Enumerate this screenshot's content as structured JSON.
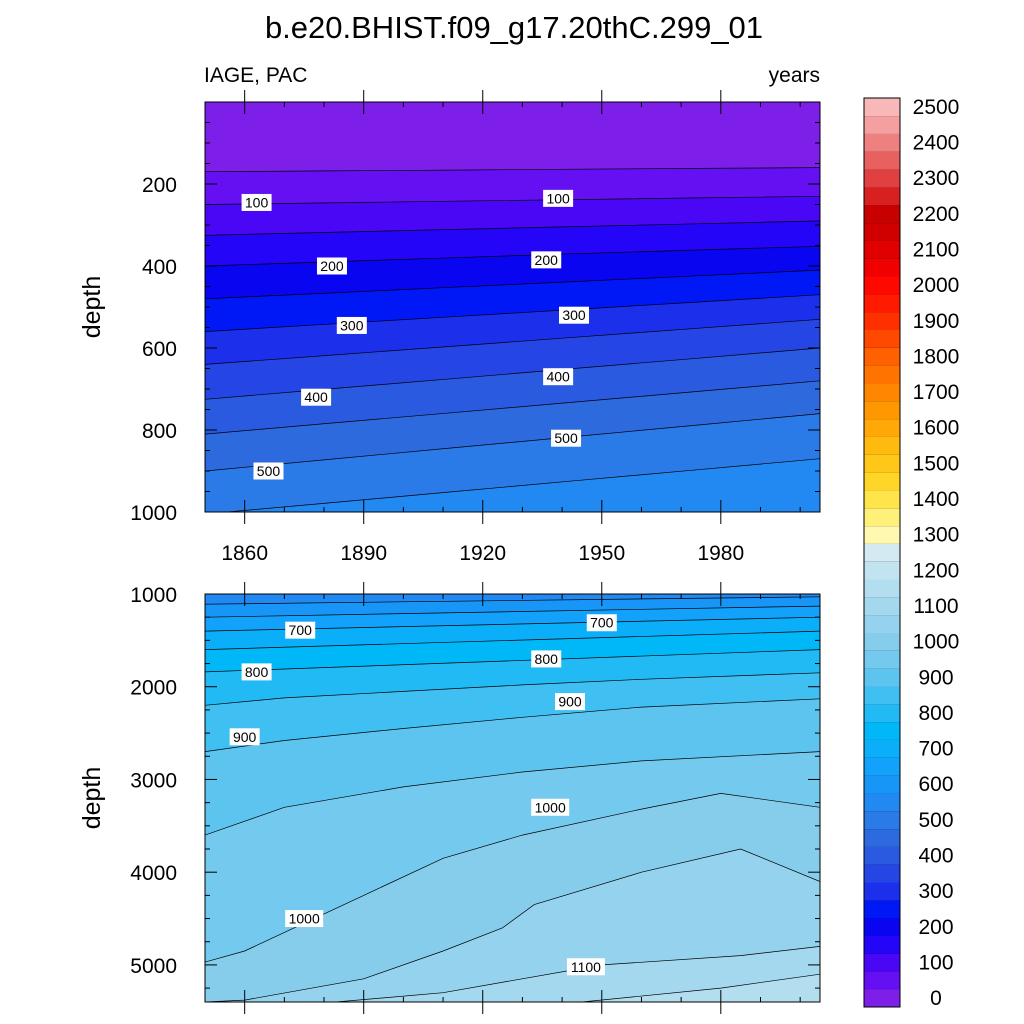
{
  "chart_data": {
    "title": "b.e20.BHIST.f09_g17.20thC.299_01",
    "panels": [
      {
        "type": "contour",
        "left_string": "IAGE, PAC",
        "right_string": "years",
        "ylabel": "depth",
        "y_range": [
          0,
          1000
        ],
        "y_reversed": true,
        "y_ticks": [
          200,
          400,
          600,
          800,
          1000
        ],
        "x_range": [
          1850,
          2005
        ],
        "x_ticks": [
          1860,
          1890,
          1920,
          1950,
          1980
        ],
        "contour_levels": [
          0,
          50,
          100,
          150,
          200,
          250,
          300,
          350,
          400,
          450,
          500,
          550
        ],
        "isolines": [
          {
            "level": 50,
            "depths": [
              170,
              168,
              166,
              164,
              162,
              160
            ]
          },
          {
            "level": 100,
            "depths": [
              250,
              246,
              242,
              238,
              234,
              230
            ]
          },
          {
            "level": 150,
            "depths": [
              325,
              318,
              311,
              304,
              297,
              290
            ]
          },
          {
            "level": 200,
            "depths": [
              400,
              390,
              380,
              370,
              361,
              352
            ]
          },
          {
            "level": 250,
            "depths": [
              480,
              466,
              452,
              438,
              424,
              410
            ]
          },
          {
            "level": 300,
            "depths": [
              560,
              542,
              524,
              506,
              488,
              470
            ]
          },
          {
            "level": 350,
            "depths": [
              640,
              618,
              596,
              574,
              552,
              530
            ]
          },
          {
            "level": 400,
            "depths": [
              725,
              700,
              675,
              650,
              625,
              600
            ]
          },
          {
            "level": 450,
            "depths": [
              810,
              784,
              758,
              732,
              706,
              680
            ]
          },
          {
            "level": 500,
            "depths": [
              900,
              872,
              844,
              816,
              788,
              760
            ]
          },
          {
            "level": 550,
            "depths": [
              1005,
              978,
              951,
              924,
              897,
              870
            ]
          }
        ],
        "contour_labels": [
          {
            "text": "100",
            "year": 1863,
            "depth": 245
          },
          {
            "text": "100",
            "year": 1939,
            "depth": 235
          },
          {
            "text": "200",
            "year": 1882,
            "depth": 400
          },
          {
            "text": "200",
            "year": 1936,
            "depth": 385
          },
          {
            "text": "300",
            "year": 1887,
            "depth": 545
          },
          {
            "text": "300",
            "year": 1943,
            "depth": 520
          },
          {
            "text": "400",
            "year": 1878,
            "depth": 720
          },
          {
            "text": "400",
            "year": 1939,
            "depth": 670
          },
          {
            "text": "500",
            "year": 1866,
            "depth": 900
          },
          {
            "text": "500",
            "year": 1941,
            "depth": 820
          }
        ]
      },
      {
        "type": "contour",
        "ylabel": "depth",
        "y_range": [
          1000,
          5400
        ],
        "y_reversed": true,
        "y_ticks": [
          1000,
          2000,
          3000,
          4000,
          5000
        ],
        "x_range": [
          1850,
          2005
        ],
        "x_ticks": [
          1860,
          1890,
          1920,
          1950,
          1980
        ],
        "contour_levels": [
          550,
          600,
          650,
          700,
          750,
          800,
          850,
          900,
          950,
          1000,
          1050,
          1100,
          1150,
          1200
        ],
        "isolines": [
          {
            "level": 600,
            "x": [
              1850,
              2005
            ],
            "depths": [
              1110,
              1030
            ]
          },
          {
            "level": 650,
            "x": [
              1850,
              2005
            ],
            "depths": [
              1250,
              1130
            ]
          },
          {
            "level": 700,
            "x": [
              1850,
              2005
            ],
            "depths": [
              1400,
              1250
            ]
          },
          {
            "level": 750,
            "x": [
              1850,
              2005
            ],
            "depths": [
              1600,
              1400
            ]
          },
          {
            "level": 800,
            "x": [
              1850,
              2005
            ],
            "depths": [
              1840,
              1600
            ]
          },
          {
            "level": 850,
            "x": [
              1850,
              1870,
              1900,
              1930,
              1960,
              2005
            ],
            "depths": [
              2200,
              2120,
              2050,
              1980,
              1920,
              1850
            ]
          },
          {
            "level": 900,
            "x": [
              1850,
              1870,
              1900,
              1930,
              1960,
              2005
            ],
            "depths": [
              2700,
              2580,
              2450,
              2330,
              2220,
              2130
            ]
          },
          {
            "level": 950,
            "x": [
              1850,
              1870,
              1900,
              1930,
              1960,
              2005
            ],
            "depths": [
              3600,
              3300,
              3080,
              2920,
              2800,
              2700
            ]
          },
          {
            "level": 1000,
            "x": [
              1850,
              1860,
              1890,
              1910,
              1930,
              1960,
              1980,
              2005
            ],
            "depths": [
              4970,
              4850,
              4250,
              3850,
              3600,
              3320,
              3150,
              3300
            ]
          },
          {
            "level": 1050,
            "x": [
              1850,
              1860,
              1890,
              1910,
              1925,
              1933,
              1960,
              1985,
              2005
            ],
            "depths": [
              5400,
              5380,
              5150,
              4850,
              4600,
              4350,
              4000,
              3750,
              4100
            ]
          },
          {
            "level": 1100,
            "x": [
              1883,
              1910,
              1950,
              1985,
              2005
            ],
            "depths": [
              5400,
              5300,
              5000,
              4900,
              4800
            ]
          },
          {
            "level": 1150,
            "x": [
              1945,
              1980,
              2005
            ],
            "depths": [
              5400,
              5250,
              5100
            ]
          }
        ],
        "contour_labels": [
          {
            "text": "700",
            "year": 1874,
            "depth": 1390
          },
          {
            "text": "700",
            "year": 1950,
            "depth": 1310
          },
          {
            "text": "800",
            "year": 1863,
            "depth": 1840
          },
          {
            "text": "800",
            "year": 1936,
            "depth": 1700
          },
          {
            "text": "900",
            "year": 1860,
            "depth": 2540
          },
          {
            "text": "900",
            "year": 1942,
            "depth": 2160
          },
          {
            "text": "1000",
            "year": 1937,
            "depth": 3300
          },
          {
            "text": "1000",
            "year": 1875,
            "depth": 4500
          },
          {
            "text": "1100",
            "year": 1946,
            "depth": 5020
          }
        ]
      }
    ],
    "colorbar": {
      "labels": [
        "2500",
        "2400",
        "2300",
        "2200",
        "2100",
        "2000",
        "1900",
        "1800",
        "1700",
        "1600",
        "1500",
        "1400",
        "1300",
        "1200",
        "1100",
        "1000",
        "900",
        "800",
        "700",
        "600",
        "500",
        "400",
        "300",
        "200",
        "100",
        "0"
      ],
      "levels": [
        0,
        50,
        100,
        150,
        200,
        250,
        300,
        350,
        400,
        450,
        500,
        550,
        600,
        650,
        700,
        750,
        800,
        850,
        900,
        950,
        1000,
        1050,
        1100,
        1150,
        1200,
        1250,
        1300,
        1350,
        1400,
        1450,
        1500,
        1550,
        1600,
        1650,
        1700,
        1750,
        1800,
        1850,
        1900,
        1950,
        2000,
        2050,
        2100,
        2150,
        2200,
        2250,
        2300,
        2350,
        2400,
        2450,
        2500,
        2550
      ],
      "colors": [
        "#7d1fe8",
        "#6510f2",
        "#4a07f5",
        "#2505f7",
        "#0a05f0",
        "#0018f5",
        "#1c30ec",
        "#2545e5",
        "#2a5ae0",
        "#2d6ade",
        "#2a7ae8",
        "#2288f2",
        "#1896f8",
        "#12a2fb",
        "#0aaef9",
        "#00b8f8",
        "#22baf5",
        "#40c0f2",
        "#5cc4ef",
        "#74c9ee",
        "#86cdec",
        "#94d2ee",
        "#a4d8ef",
        "#b3deef",
        "#c1e4f0",
        "#d3eaf3",
        "#fff8b0",
        "#fff07a",
        "#ffe44a",
        "#ffd628",
        "#ffc818",
        "#ffba10",
        "#ffa808",
        "#ff9800",
        "#ff8600",
        "#ff7400",
        "#ff6000",
        "#ff4800",
        "#ff3000",
        "#ff1a00",
        "#ff0800",
        "#f00000",
        "#e00000",
        "#d00000",
        "#c80000",
        "#d82020",
        "#e04040",
        "#e86060",
        "#ee8080",
        "#f4a0a0",
        "#f8b8b8"
      ]
    }
  }
}
